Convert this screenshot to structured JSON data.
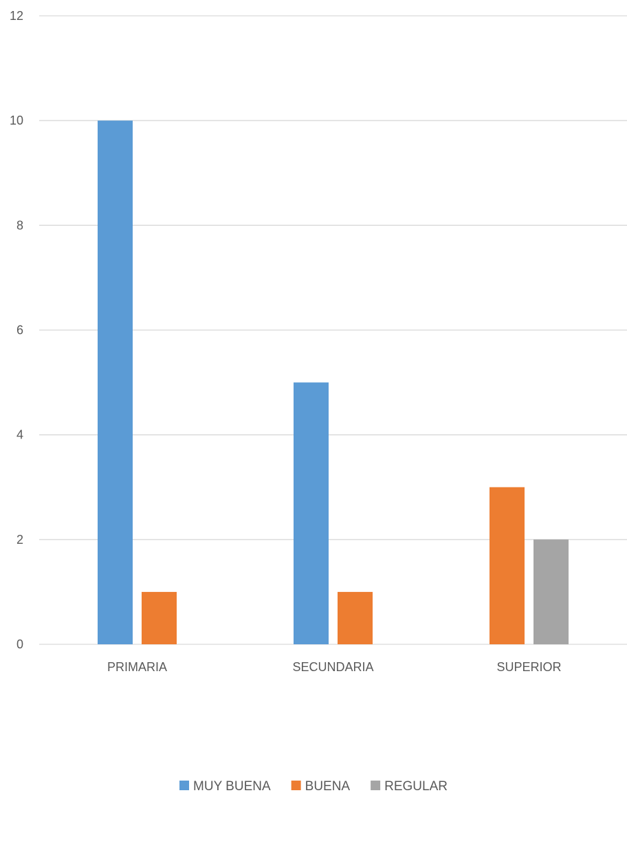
{
  "chart_data": {
    "type": "bar",
    "categories": [
      "PRIMARIA",
      "SECUNDARIA",
      "SUPERIOR"
    ],
    "series": [
      {
        "name": "MUY BUENA",
        "values": [
          10,
          5,
          0
        ],
        "color": "#5B9BD5"
      },
      {
        "name": "BUENA",
        "values": [
          1,
          1,
          3
        ],
        "color": "#ED7D31"
      },
      {
        "name": "REGULAR",
        "values": [
          0,
          0,
          2
        ],
        "color": "#A5A5A5"
      }
    ],
    "yticks": [
      "0",
      "2",
      "4",
      "6",
      "8",
      "10",
      "12"
    ],
    "ylim": [
      0,
      12
    ],
    "grid": true,
    "legend_position": "bottom",
    "title": "",
    "xlabel": "",
    "ylabel": ""
  }
}
